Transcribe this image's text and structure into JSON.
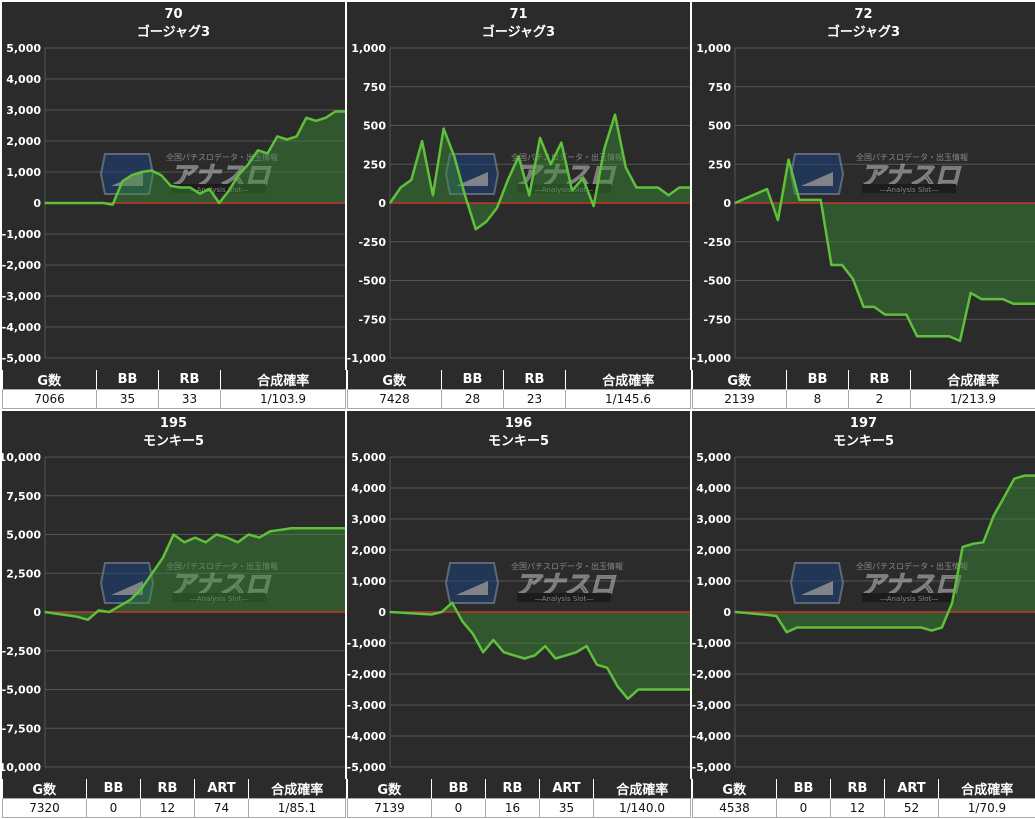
{
  "chart_data": [
    {
      "type": "area",
      "title": "70",
      "subtitle": "ゴージャグ3",
      "ylim": [
        -5000,
        5000
      ],
      "yticks": [
        5000,
        4000,
        3000,
        2000,
        1000,
        0,
        -1000,
        -2000,
        -3000,
        -4000,
        -5000
      ],
      "ytick_labels": [
        "5,000",
        "4,000",
        "3,000",
        "2,000",
        "1,000",
        "0",
        "-1,000",
        "-2,000",
        "-3,000",
        "-4,000",
        "-5,000"
      ],
      "y": [
        0,
        0,
        0,
        0,
        0,
        0,
        0,
        -50,
        700,
        900,
        1000,
        1050,
        900,
        550,
        500,
        500,
        300,
        450,
        0,
        400,
        900,
        1250,
        1700,
        1600,
        2150,
        2050,
        2150,
        2750,
        2650,
        2750,
        2950,
        2950
      ],
      "stats": {
        "headers": [
          "G数",
          "BB",
          "RB",
          "合成確率"
        ],
        "values": [
          "7066",
          "35",
          "33",
          "1/103.9"
        ]
      }
    },
    {
      "type": "area",
      "title": "71",
      "subtitle": "ゴージャグ3",
      "ylim": [
        -1000,
        1000
      ],
      "yticks": [
        1000,
        750,
        500,
        250,
        0,
        -250,
        -500,
        -750,
        -1000
      ],
      "ytick_labels": [
        "1,000",
        "750",
        "500",
        "250",
        "0",
        "-250",
        "-500",
        "-750",
        "-1,000"
      ],
      "y": [
        0,
        100,
        150,
        400,
        50,
        480,
        300,
        50,
        -170,
        -120,
        -30,
        150,
        300,
        50,
        420,
        250,
        390,
        80,
        160,
        -20,
        350,
        570,
        230,
        100,
        100,
        100,
        50,
        100,
        100
      ],
      "stats": {
        "headers": [
          "G数",
          "BB",
          "RB",
          "合成確率"
        ],
        "values": [
          "7428",
          "28",
          "23",
          "1/145.6"
        ]
      }
    },
    {
      "type": "area",
      "title": "72",
      "subtitle": "ゴージャグ3",
      "ylim": [
        -1000,
        1000
      ],
      "yticks": [
        1000,
        750,
        500,
        250,
        0,
        -250,
        -500,
        -750,
        -1000
      ],
      "ytick_labels": [
        "1,000",
        "750",
        "500",
        "250",
        "0",
        "-250",
        "-500",
        "-750",
        "-1,000"
      ],
      "y": [
        0,
        30,
        60,
        90,
        -110,
        280,
        20,
        20,
        20,
        -400,
        -400,
        -490,
        -670,
        -670,
        -720,
        -720,
        -720,
        -860,
        -860,
        -860,
        -860,
        -890,
        -580,
        -620,
        -620,
        -620,
        -650,
        -650,
        -650
      ],
      "stats": {
        "headers": [
          "G数",
          "BB",
          "RB",
          "合成確率"
        ],
        "values": [
          "2139",
          "8",
          "2",
          "1/213.9"
        ]
      }
    },
    {
      "type": "area",
      "title": "195",
      "subtitle": "モンキー5",
      "ylim": [
        -10000,
        10000
      ],
      "yticks": [
        10000,
        7500,
        5000,
        2500,
        0,
        -2500,
        -5000,
        -7500,
        -10000
      ],
      "ytick_labels": [
        "10,000",
        "7,500",
        "5,000",
        "2,500",
        "0",
        "-2,500",
        "-5,000",
        "-7,500",
        "-10,000"
      ],
      "y": [
        0,
        -100,
        -200,
        -300,
        -500,
        100,
        0,
        400,
        800,
        1500,
        2500,
        3500,
        5000,
        4500,
        4800,
        4500,
        5000,
        4800,
        4500,
        5000,
        4800,
        5200,
        5300,
        5400,
        5400,
        5400,
        5400,
        5400,
        5400
      ],
      "stats": {
        "headers": [
          "G数",
          "BB",
          "RB",
          "ART",
          "合成確率"
        ],
        "values": [
          "7320",
          "0",
          "12",
          "74",
          "1/85.1"
        ]
      }
    },
    {
      "type": "area",
      "title": "196",
      "subtitle": "モンキー5",
      "ylim": [
        -5000,
        5000
      ],
      "yticks": [
        5000,
        4000,
        3000,
        2000,
        1000,
        0,
        -1000,
        -2000,
        -3000,
        -4000,
        -5000
      ],
      "ytick_labels": [
        "5,000",
        "4,000",
        "3,000",
        "2,000",
        "1,000",
        "0",
        "-1,000",
        "-2,000",
        "-3,000",
        "-4,000",
        "-5,000"
      ],
      "y": [
        0,
        -20,
        -40,
        -60,
        -80,
        0,
        300,
        -300,
        -700,
        -1300,
        -900,
        -1300,
        -1400,
        -1500,
        -1400,
        -1100,
        -1500,
        -1400,
        -1300,
        -1100,
        -1700,
        -1800,
        -2400,
        -2800,
        -2500,
        -2500,
        -2500,
        -2500,
        -2500,
        -2500
      ],
      "stats": {
        "headers": [
          "G数",
          "BB",
          "RB",
          "ART",
          "合成確率"
        ],
        "values": [
          "7139",
          "0",
          "16",
          "35",
          "1/140.0"
        ]
      }
    },
    {
      "type": "area",
      "title": "197",
      "subtitle": "モンキー5",
      "ylim": [
        -5000,
        5000
      ],
      "yticks": [
        5000,
        4000,
        3000,
        2000,
        1000,
        0,
        -1000,
        -2000,
        -3000,
        -4000,
        -5000
      ],
      "ytick_labels": [
        "5,000",
        "4,000",
        "3,000",
        "2,000",
        "1,000",
        "0",
        "-1,000",
        "-2,000",
        "-3,000",
        "-4,000",
        "-5,000"
      ],
      "y": [
        0,
        -30,
        -60,
        -90,
        -130,
        -650,
        -500,
        -500,
        -500,
        -500,
        -500,
        -500,
        -500,
        -500,
        -500,
        -500,
        -500,
        -500,
        -500,
        -600,
        -500,
        300,
        2100,
        2200,
        2250,
        3100,
        3700,
        4300,
        4400,
        4400
      ],
      "stats": {
        "headers": [
          "G数",
          "BB",
          "RB",
          "ART",
          "合成確率"
        ],
        "values": [
          "4538",
          "0",
          "12",
          "52",
          "1/70.9"
        ]
      }
    }
  ],
  "watermark": {
    "top_text": "全国パチスロデータ・出玉情報",
    "logo_text": "アナスロ",
    "sub_text": "―Analysis Slot―"
  },
  "colors": {
    "background": "#2b2b2b",
    "grid": "#555555",
    "line": "#5fc03c",
    "fill": "#3a8f36",
    "zero_line": "#c0392b",
    "text": "#ffffff"
  }
}
